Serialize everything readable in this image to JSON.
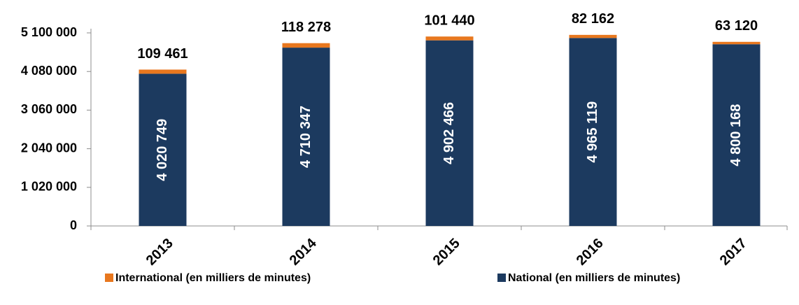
{
  "chart_data": {
    "type": "stacked_bar",
    "categories": [
      "2013",
      "2014",
      "2015",
      "2016",
      "2017"
    ],
    "series": [
      {
        "name": "International (en milliers de minutes)",
        "color": "#e8771e",
        "values": [
          109461,
          118278,
          101440,
          82162,
          63120
        ],
        "value_labels": [
          "109 461",
          "118 278",
          "101 440",
          "82 162",
          "63 120"
        ]
      },
      {
        "name": "National (en milliers de minutes)",
        "color": "#1c3a5f",
        "values": [
          4020749,
          4710347,
          4902466,
          4965119,
          4800168
        ],
        "value_labels": [
          "4 020 749",
          "4 710 347",
          "4 902 466",
          "4 965 119",
          "4 800 168"
        ]
      }
    ],
    "ylim": [
      0,
      5100000
    ],
    "yticks": [
      0,
      {
        "value": 1020000,
        "label": "1 020 000"
      },
      {
        "value": 2040000,
        "label": "2 040 000"
      },
      {
        "value": 3060000,
        "label": "3 060 000"
      },
      {
        "value": 4080000,
        "label": "4 080 000"
      },
      {
        "value": 5100000,
        "label": "5 100 000"
      }
    ],
    "grid": false,
    "legend": "bottom"
  }
}
